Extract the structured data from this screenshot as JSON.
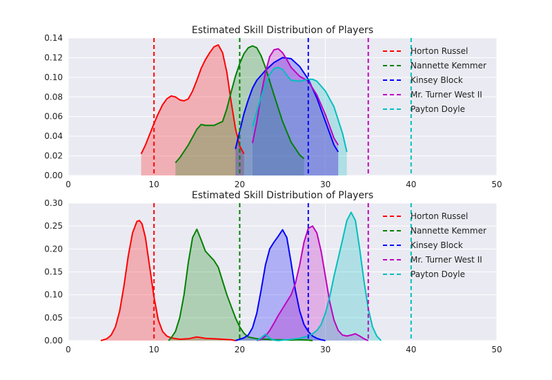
{
  "chart_data": [
    {
      "type": "area",
      "title": "Estimated Skill Distribution of Players",
      "xlabel": "",
      "ylabel": "",
      "xlim": [
        0,
        50
      ],
      "ylim": [
        0,
        0.14
      ],
      "xticks": [
        "0",
        "10",
        "20",
        "30",
        "40",
        "50"
      ],
      "yticks": [
        "0.00",
        "0.02",
        "0.04",
        "0.06",
        "0.08",
        "0.10",
        "0.12",
        "0.14"
      ],
      "grid": true,
      "legend": "top-right",
      "series": [
        {
          "name": "Horton Russel",
          "color": "#ff0000",
          "true_skill": 10,
          "x": [
            8.5,
            9,
            9.5,
            10,
            10.5,
            11,
            11.5,
            12,
            12.5,
            13,
            13.5,
            14,
            14.5,
            15,
            15.5,
            16,
            16.5,
            17,
            17.5,
            18,
            18.5,
            19,
            19.5,
            20,
            20.5
          ],
          "y": [
            0.022,
            0.031,
            0.042,
            0.053,
            0.063,
            0.072,
            0.078,
            0.081,
            0.08,
            0.077,
            0.076,
            0.078,
            0.086,
            0.097,
            0.109,
            0.118,
            0.125,
            0.131,
            0.133,
            0.125,
            0.105,
            0.075,
            0.048,
            0.03,
            0.022
          ]
        },
        {
          "name": "Nannette Kemmer",
          "color": "#008000",
          "true_skill": 20,
          "x": [
            12.5,
            13,
            14,
            15,
            15.5,
            16,
            17,
            18,
            18.5,
            19,
            19.5,
            20,
            20.5,
            21,
            21.5,
            22,
            22.5,
            23,
            24,
            25,
            26,
            27,
            27.5
          ],
          "y": [
            0.013,
            0.018,
            0.031,
            0.047,
            0.052,
            0.051,
            0.051,
            0.055,
            0.068,
            0.085,
            0.101,
            0.114,
            0.124,
            0.13,
            0.132,
            0.13,
            0.122,
            0.11,
            0.082,
            0.055,
            0.034,
            0.021,
            0.017
          ]
        },
        {
          "name": "Kinsey Block",
          "color": "#0000ff",
          "true_skill": 28,
          "x": [
            19.5,
            20,
            20.5,
            21,
            21.5,
            22,
            23,
            24,
            25,
            26,
            27,
            28,
            29,
            30,
            31,
            31.5
          ],
          "y": [
            0.027,
            0.045,
            0.063,
            0.077,
            0.089,
            0.097,
            0.107,
            0.115,
            0.12,
            0.119,
            0.111,
            0.098,
            0.079,
            0.055,
            0.031,
            0.024
          ]
        },
        {
          "name": "Mr. Turner West II",
          "color": "#bf00bf",
          "true_skill": 35,
          "x": [
            21.5,
            22,
            22.5,
            23,
            23.5,
            24,
            24.5,
            25,
            25.5,
            26,
            27,
            28,
            29,
            30,
            31,
            31.5
          ],
          "y": [
            0.033,
            0.055,
            0.082,
            0.105,
            0.121,
            0.128,
            0.129,
            0.125,
            0.118,
            0.11,
            0.101,
            0.096,
            0.082,
            0.062,
            0.038,
            0.031
          ]
        },
        {
          "name": "Payton Doyle",
          "color": "#00bfbf",
          "true_skill": 40,
          "x": [
            21.5,
            22,
            22.5,
            23,
            23.5,
            24,
            24.5,
            25,
            25.5,
            26,
            27,
            28,
            28.5,
            29,
            30,
            31,
            32,
            32.5
          ],
          "y": [
            0.05,
            0.065,
            0.08,
            0.093,
            0.103,
            0.109,
            0.11,
            0.108,
            0.102,
            0.097,
            0.096,
            0.098,
            0.098,
            0.096,
            0.086,
            0.07,
            0.043,
            0.024
          ]
        }
      ]
    },
    {
      "type": "area",
      "title": "Estimated Skill Distribution of Players",
      "xlabel": "",
      "ylabel": "",
      "xlim": [
        0,
        50
      ],
      "ylim": [
        0,
        0.3
      ],
      "xticks": [
        "0",
        "10",
        "20",
        "30",
        "40",
        "50"
      ],
      "yticks": [
        "0.00",
        "0.05",
        "0.10",
        "0.15",
        "0.20",
        "0.25",
        "0.30"
      ],
      "grid": true,
      "legend": "top-right",
      "series": [
        {
          "name": "Horton Russel",
          "color": "#ff0000",
          "true_skill": 10,
          "x": [
            3.8,
            4.5,
            5,
            5.5,
            6,
            6.5,
            7,
            7.5,
            8,
            8.3,
            8.6,
            9,
            9.5,
            10,
            10.5,
            11,
            11.5,
            12,
            13,
            14,
            15,
            16,
            17,
            18,
            19,
            19.5
          ],
          "y": [
            0.0,
            0.004,
            0.012,
            0.03,
            0.065,
            0.12,
            0.185,
            0.235,
            0.26,
            0.262,
            0.255,
            0.225,
            0.16,
            0.095,
            0.045,
            0.02,
            0.01,
            0.006,
            0.003,
            0.004,
            0.008,
            0.005,
            0.004,
            0.003,
            0.002,
            0.0
          ]
        },
        {
          "name": "Nannette Kemmer",
          "color": "#008000",
          "true_skill": 20,
          "x": [
            11.7,
            12,
            12.5,
            13,
            13.5,
            14,
            14.5,
            15,
            15.5,
            16,
            16.5,
            17,
            17.5,
            18,
            18.5,
            19,
            19.5,
            20,
            20.5,
            21,
            22,
            23,
            24,
            25,
            26,
            27,
            28,
            28.5
          ],
          "y": [
            0.0,
            0.006,
            0.02,
            0.05,
            0.1,
            0.17,
            0.225,
            0.243,
            0.22,
            0.195,
            0.185,
            0.175,
            0.16,
            0.13,
            0.1,
            0.075,
            0.05,
            0.03,
            0.016,
            0.008,
            0.004,
            0.003,
            0.002,
            0.002,
            0.001,
            0.002,
            0.001,
            0.0
          ]
        },
        {
          "name": "Kinsey Block",
          "color": "#0000ff",
          "true_skill": 28,
          "x": [
            19.5,
            20,
            20.5,
            21,
            21.5,
            22,
            22.5,
            23,
            23.5,
            24,
            24.5,
            25,
            25.5,
            26,
            26.5,
            27,
            27.5,
            28,
            28.5,
            29,
            29.5,
            30
          ],
          "y": [
            0.0,
            0.003,
            0.006,
            0.012,
            0.028,
            0.06,
            0.11,
            0.165,
            0.2,
            0.215,
            0.228,
            0.242,
            0.225,
            0.17,
            0.11,
            0.065,
            0.035,
            0.02,
            0.01,
            0.005,
            0.002,
            0.0
          ]
        },
        {
          "name": "Mr. Turner West II",
          "color": "#bf00bf",
          "true_skill": 35,
          "x": [
            22,
            22.5,
            23,
            23.5,
            24,
            24.5,
            25,
            25.5,
            26,
            26.5,
            27,
            27.5,
            28,
            28.5,
            29,
            29.5,
            30,
            30.5,
            31,
            31.5,
            32,
            32.5,
            33,
            33.5,
            34,
            34.5,
            35
          ],
          "y": [
            0.0,
            0.003,
            0.01,
            0.022,
            0.038,
            0.055,
            0.07,
            0.085,
            0.1,
            0.125,
            0.165,
            0.215,
            0.245,
            0.25,
            0.235,
            0.195,
            0.14,
            0.085,
            0.045,
            0.022,
            0.012,
            0.01,
            0.012,
            0.015,
            0.01,
            0.004,
            0.0
          ]
        },
        {
          "name": "Payton Doyle",
          "color": "#00bfbf",
          "true_skill": 40,
          "x": [
            22,
            22.5,
            23,
            23.5,
            24,
            24.5,
            25,
            25.5,
            26,
            27,
            28,
            28.5,
            29,
            29.5,
            30,
            30.5,
            31,
            31.5,
            32,
            32.5,
            33,
            33.5,
            34,
            34.5,
            35,
            35.5,
            36,
            36.5
          ],
          "y": [
            0.0,
            0.006,
            0.014,
            0.005,
            0.001,
            0.0,
            0.001,
            0.002,
            0.003,
            0.005,
            0.01,
            0.015,
            0.022,
            0.035,
            0.06,
            0.095,
            0.14,
            0.18,
            0.22,
            0.262,
            0.28,
            0.262,
            0.2,
            0.13,
            0.07,
            0.03,
            0.01,
            0.0
          ]
        }
      ]
    }
  ]
}
